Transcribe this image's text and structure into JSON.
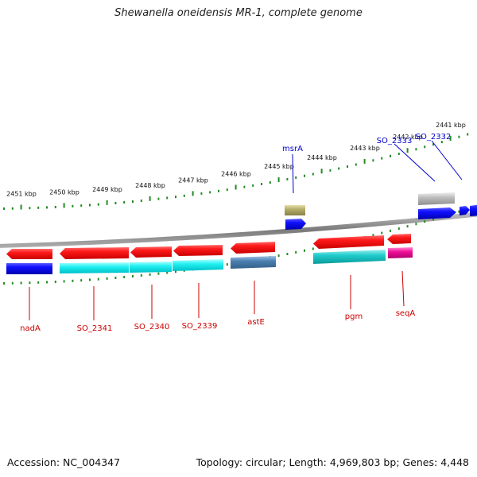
{
  "title": "Shewanella oneidensis MR-1, complete genome",
  "accession_label": "Accession:",
  "accession": "NC_004347",
  "topology_label": "Topology:",
  "topology": "circular",
  "length_label": "Length:",
  "length": "4,969,803 bp",
  "genes_label": "Genes:",
  "genes": "4,448",
  "ticks": [
    {
      "label": "2451 kbp",
      "pos": 2451
    },
    {
      "label": "2450 kbp",
      "pos": 2450
    },
    {
      "label": "2449 kbp",
      "pos": 2449
    },
    {
      "label": "2448 kbp",
      "pos": 2448
    },
    {
      "label": "2447 kbp",
      "pos": 2447
    },
    {
      "label": "2446 kbp",
      "pos": 2446
    },
    {
      "label": "2445 kbp",
      "pos": 2445
    },
    {
      "label": "2444 kbp",
      "pos": 2444
    },
    {
      "label": "2443 kbp",
      "pos": 2443
    },
    {
      "label": "2442 kbp",
      "pos": 2442
    },
    {
      "label": "2441 kbp",
      "pos": 2441
    }
  ],
  "genes_labeled": [
    {
      "name": "nadA",
      "strand": "reverse",
      "color": "#cc0000"
    },
    {
      "name": "SO_2341",
      "strand": "reverse",
      "color": "#cc0000"
    },
    {
      "name": "SO_2340",
      "strand": "reverse",
      "color": "#cc0000"
    },
    {
      "name": "SO_2339",
      "strand": "reverse",
      "color": "#cc0000"
    },
    {
      "name": "astE",
      "strand": "reverse",
      "color": "#cc0000"
    },
    {
      "name": "pgm",
      "strand": "reverse",
      "color": "#cc0000"
    },
    {
      "name": "seqA",
      "strand": "reverse",
      "color": "#cc0000"
    },
    {
      "name": "msrA",
      "strand": "forward",
      "color": "#0000cc"
    },
    {
      "name": "SO_2333",
      "strand": "forward",
      "color": "#0000cc"
    },
    {
      "name": "SO_2332",
      "strand": "forward",
      "color": "#0000cc"
    }
  ],
  "colors": {
    "reverse_cds": "#e00000",
    "reverse_gene_cyan": "#00e5e5",
    "forward_cds": "#0000e0",
    "backbone": "#888888",
    "tick": "#228b22",
    "astE_gene": "#4a7fb0",
    "seqA_gene": "#e0109a",
    "msrA_gene": "#b5ad6a",
    "SO_2333_gene": "#b8b8b8"
  }
}
